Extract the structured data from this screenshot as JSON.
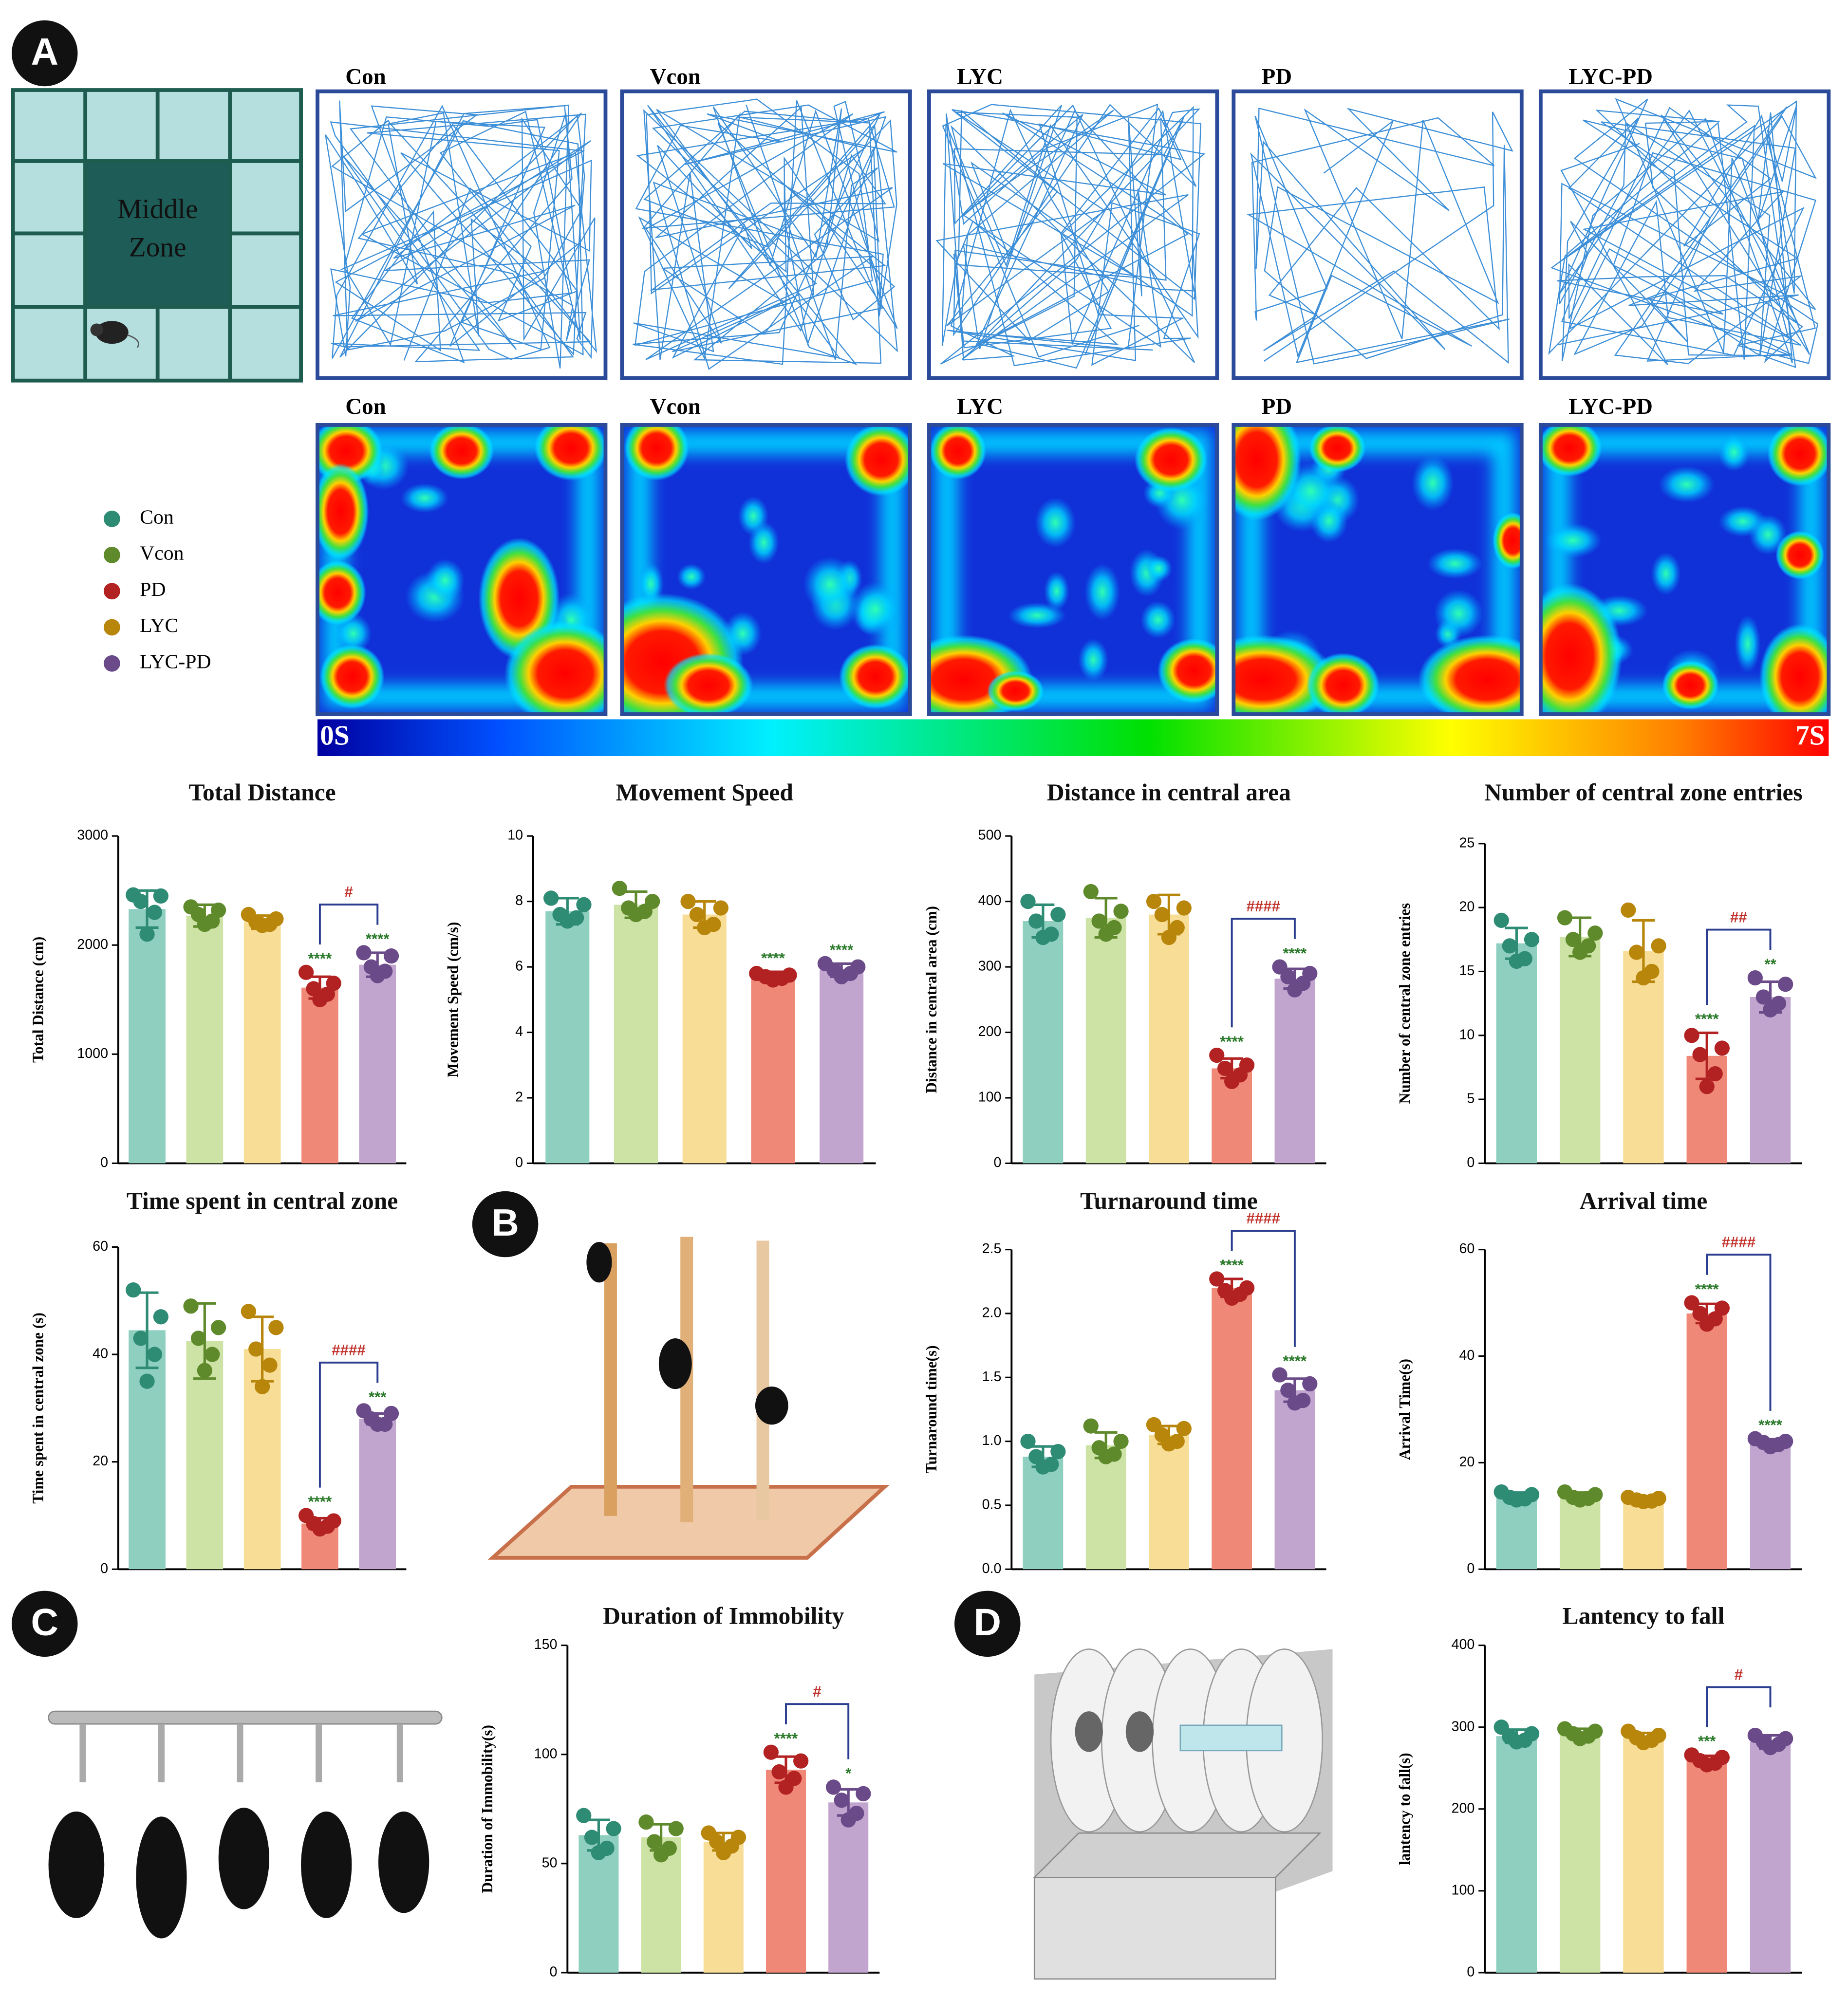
{
  "panels": [
    "A",
    "B",
    "C",
    "D"
  ],
  "open_field": {
    "maze_label": "Middle Zone",
    "track_labels": [
      "Con",
      "Vcon",
      "LYC",
      "PD",
      "LYC-PD"
    ],
    "heatmap_labels": [
      "Con",
      "Vcon",
      "LYC",
      "PD",
      "LYC-PD"
    ],
    "colorbar_min": "0S",
    "colorbar_max": "7S"
  },
  "legend": [
    {
      "name": "Con",
      "color": "#2e8b74"
    },
    {
      "name": "Vcon",
      "color": "#5f8a2c"
    },
    {
      "name": "PD",
      "color": "#b22222"
    },
    {
      "name": "LYC",
      "color": "#b8860b"
    },
    {
      "name": "LYC-PD",
      "color": "#6b4a8a"
    }
  ],
  "chart_data": [
    {
      "type": "bar",
      "title": "Total Distance",
      "ylabel": "Total Distance (cm)",
      "ylim": [
        0,
        3000
      ],
      "yticks": [
        0,
        1000,
        2000,
        3000
      ],
      "values": [
        2330,
        2270,
        2210,
        1610,
        1820
      ],
      "errors": [
        170,
        100,
        60,
        100,
        110
      ],
      "points": [
        [
          2460,
          2450,
          2400,
          2300,
          2100
        ],
        [
          2350,
          2320,
          2280,
          2220,
          2190
        ],
        [
          2280,
          2240,
          2210,
          2190,
          2180
        ],
        [
          1750,
          1650,
          1600,
          1550,
          1500
        ],
        [
          1930,
          1900,
          1800,
          1760,
          1720
        ]
      ],
      "stars": [
        null,
        null,
        null,
        "****",
        "****"
      ],
      "bracket": "#"
    },
    {
      "type": "bar",
      "title": "Movement Speed",
      "ylabel": "Movement Speed (cm/s)",
      "ylim": [
        0,
        10
      ],
      "yticks": [
        0,
        2,
        4,
        6,
        8,
        10
      ],
      "values": [
        7.7,
        7.9,
        7.6,
        5.7,
        5.9
      ],
      "errors": [
        0.4,
        0.4,
        0.4,
        0.15,
        0.2
      ],
      "points": [
        [
          8.1,
          7.9,
          7.6,
          7.5,
          7.4
        ],
        [
          8.4,
          8.0,
          7.8,
          7.7,
          7.6
        ],
        [
          8.0,
          7.8,
          7.6,
          7.3,
          7.2
        ],
        [
          5.8,
          5.75,
          5.7,
          5.65,
          5.6
        ],
        [
          6.1,
          6.0,
          5.9,
          5.8,
          5.7
        ]
      ],
      "stars": [
        null,
        null,
        null,
        "****",
        "****"
      ]
    },
    {
      "type": "bar",
      "title": "Distance in central area",
      "ylabel": "Distance in central area (cm)",
      "ylim": [
        0,
        500
      ],
      "yticks": [
        0,
        100,
        200,
        300,
        400,
        500
      ],
      "values": [
        370,
        375,
        380,
        145,
        282
      ],
      "errors": [
        25,
        30,
        30,
        15,
        15
      ],
      "points": [
        [
          400,
          380,
          370,
          350,
          345
        ],
        [
          415,
          385,
          370,
          360,
          350
        ],
        [
          400,
          390,
          380,
          360,
          345
        ],
        [
          165,
          150,
          145,
          135,
          125
        ],
        [
          300,
          290,
          285,
          275,
          265
        ]
      ],
      "stars": [
        null,
        null,
        null,
        "****",
        "****"
      ],
      "bracket": "####"
    },
    {
      "type": "bar",
      "title": "Number of central zone entries",
      "ylabel": "Number of central zone entries",
      "ylim": [
        0,
        25
      ],
      "yticks": [
        0,
        5,
        10,
        15,
        20,
        25
      ],
      "values": [
        17.2,
        17.7,
        16.6,
        8.4,
        13
      ],
      "errors": [
        1.2,
        1.5,
        2.4,
        1.8,
        1.2
      ],
      "points": [
        [
          19,
          17.5,
          17,
          16,
          15.8
        ],
        [
          19.2,
          18,
          17.5,
          17,
          16.5
        ],
        [
          19.8,
          17,
          16.5,
          15,
          14.5
        ],
        [
          10,
          9,
          8.5,
          7,
          6
        ],
        [
          14.5,
          14,
          13,
          12.5,
          12
        ]
      ],
      "stars": [
        null,
        null,
        null,
        "****",
        "**"
      ],
      "bracket": "##"
    },
    {
      "type": "bar",
      "title": "Time spent in central zone",
      "ylabel": "Time spent in central zone (s)",
      "ylim": [
        0,
        60
      ],
      "yticks": [
        0,
        20,
        40,
        60
      ],
      "values": [
        44.5,
        42.5,
        41,
        8.5,
        28
      ],
      "errors": [
        7,
        7,
        6,
        1,
        1
      ],
      "points": [
        [
          52,
          47,
          43,
          40,
          35
        ],
        [
          49,
          45,
          43,
          40,
          37
        ],
        [
          48,
          45,
          41,
          38,
          34
        ],
        [
          10,
          9,
          8.5,
          8,
          7.5
        ],
        [
          29.5,
          29,
          28,
          27,
          27
        ]
      ],
      "stars": [
        null,
        null,
        null,
        "****",
        "***"
      ],
      "bracket": "####"
    },
    {
      "type": "bar",
      "title": "Turnaround time",
      "ylabel": "Turnaround time(s)",
      "ylim": [
        0,
        2.5
      ],
      "yticks": [
        {
          "value": 0,
          "label": "0.0"
        },
        0.5,
        {
          "value": 1,
          "label": "1.0"
        },
        1.5,
        {
          "value": 2,
          "label": "2.0"
        },
        2.5
      ],
      "values": [
        0.88,
        0.97,
        1.05,
        2.2,
        1.4
      ],
      "errors": [
        0.08,
        0.1,
        0.07,
        0.07,
        0.09
      ],
      "points": [
        [
          1.0,
          0.92,
          0.88,
          0.82,
          0.8
        ],
        [
          1.12,
          1.0,
          0.95,
          0.9,
          0.88
        ],
        [
          1.13,
          1.1,
          1.05,
          1.0,
          0.98
        ],
        [
          2.27,
          2.2,
          2.18,
          2.15,
          2.12
        ],
        [
          1.52,
          1.45,
          1.4,
          1.32,
          1.3
        ]
      ],
      "stars": [
        null,
        null,
        null,
        "****",
        "****"
      ],
      "bracket": "####"
    },
    {
      "type": "bar",
      "title": "Arrival time",
      "ylabel": "Arrival Time(s)",
      "ylim": [
        0,
        60
      ],
      "yticks": [
        0,
        20,
        40,
        60
      ],
      "values": [
        13.6,
        13.6,
        13.1,
        48,
        23.6
      ],
      "errors": [
        0.8,
        0.8,
        0.5,
        1.8,
        0.8
      ],
      "points": [
        [
          14.5,
          14,
          13.5,
          13.2,
          13
        ],
        [
          14.5,
          14,
          13.5,
          13.3,
          13
        ],
        [
          13.5,
          13.3,
          13,
          12.8,
          12.7
        ],
        [
          50,
          49,
          48,
          47,
          46
        ],
        [
          24.5,
          24,
          23.8,
          23.4,
          23
        ]
      ],
      "stars": [
        null,
        null,
        null,
        "****",
        "****"
      ],
      "bracket": "####"
    },
    {
      "type": "bar",
      "title": "Duration of Immobility",
      "ylabel": "Duration of Immobility(s)",
      "ylim": [
        0,
        150
      ],
      "yticks": [
        0,
        50,
        100,
        150
      ],
      "values": [
        63,
        62,
        60,
        93,
        78
      ],
      "errors": [
        7,
        6,
        4,
        6,
        6
      ],
      "points": [
        [
          72,
          66,
          62,
          57,
          55
        ],
        [
          69,
          66,
          60,
          57,
          54
        ],
        [
          64,
          62,
          60,
          58,
          55
        ],
        [
          101,
          97,
          92,
          89,
          85
        ],
        [
          85,
          82,
          79,
          73,
          70
        ]
      ],
      "stars": [
        null,
        null,
        null,
        "****",
        "*"
      ],
      "bracket": "#"
    },
    {
      "type": "bar",
      "title": "Lantency to fall",
      "ylabel": "lantency to fall(s)",
      "ylim": [
        0,
        400
      ],
      "yticks": [
        0,
        100,
        200,
        300,
        400
      ],
      "values": [
        289,
        292,
        287,
        260,
        282
      ],
      "errors": [
        8,
        6,
        6,
        5,
        8
      ],
      "points": [
        [
          300,
          292,
          288,
          284,
          282
        ],
        [
          298,
          295,
          292,
          289,
          286
        ],
        [
          295,
          290,
          287,
          284,
          281
        ],
        [
          266,
          263,
          259,
          256,
          254
        ],
        [
          290,
          286,
          282,
          279,
          275
        ]
      ],
      "stars": [
        null,
        null,
        null,
        "***",
        null
      ],
      "bracket": "#"
    }
  ],
  "style": {
    "bar_colors": [
      "#8ecfc0",
      "#cde3a5",
      "#f8dd96",
      "#f08878",
      "#c2a5cf"
    ],
    "point_colors": [
      "#2e8b74",
      "#5f8a2c",
      "#b8860b",
      "#b22222",
      "#6b4a8a"
    ],
    "star_color": "#2a7a2a",
    "bracket_color": "#2b3d8f",
    "hash_color": "#c0302a"
  }
}
